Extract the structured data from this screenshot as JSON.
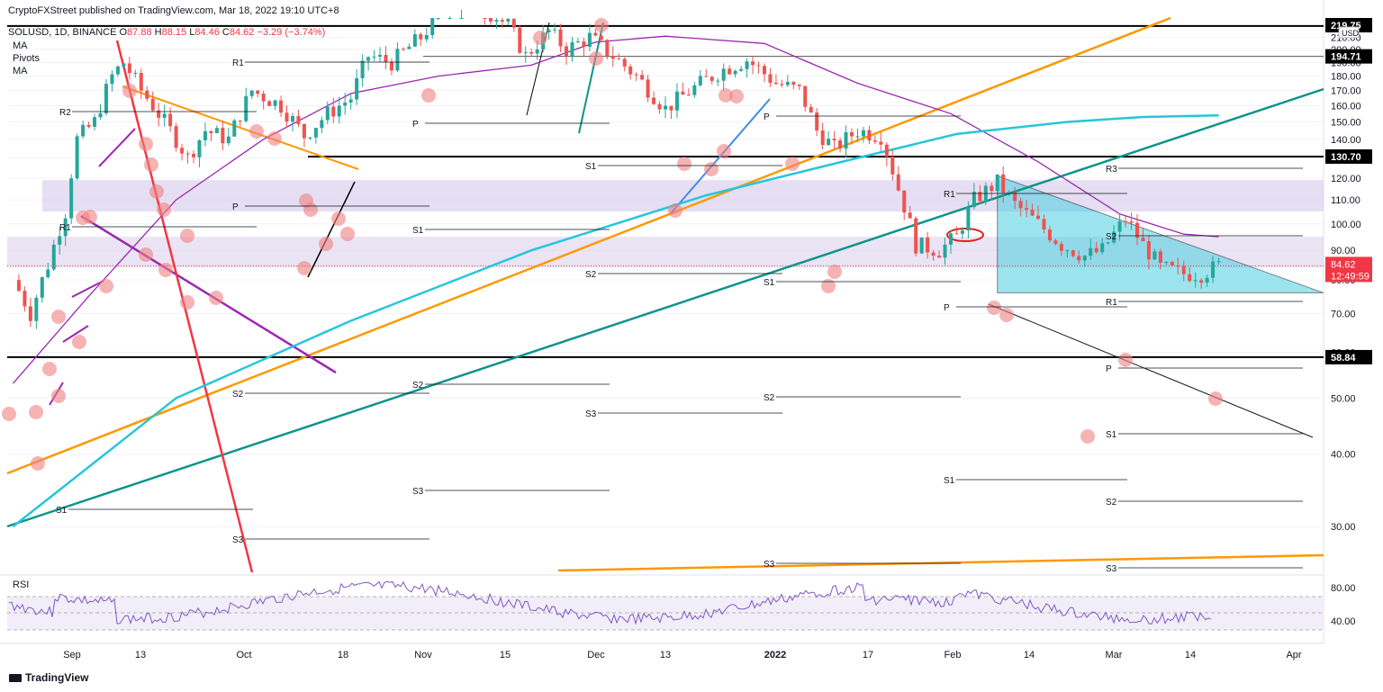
{
  "header": {
    "publisher": "CryptoFXStreet published on TradingView.com, Mar 18, 2022 19:10 UTC+8",
    "symbol": "SOLUSD, 1D, BINANCE",
    "ohlc": {
      "o_label": "O",
      "o": "87.88",
      "h_label": "H",
      "h": "88.15",
      "l_label": "L",
      "l": "84.46",
      "c_label": "C",
      "c": "84.62",
      "chg": "−3.29 (−3.74%)"
    },
    "indicators": [
      "MA",
      "Pivots",
      "MA"
    ],
    "rsi_label": "RSI"
  },
  "branding": {
    "name": "TradingView"
  },
  "colors": {
    "up": "#26a69a",
    "down": "#ef5350",
    "ma_purple": "#9c27b0",
    "ma_cyan": "#26c6da",
    "orange": "#ff9800",
    "teal": "#0f9488",
    "zone": "#d1c4e9",
    "triangle": "#4dd0e1"
  },
  "chart_data": {
    "type": "candlestick",
    "symbol": "SOLUSD",
    "timeframe": "1D",
    "currency": "USD",
    "ylim": [
      25,
      222
    ],
    "y_ticks": [
      30,
      40,
      50,
      60,
      70,
      80,
      90,
      100,
      110,
      120,
      130,
      140,
      150,
      160,
      170,
      180,
      190,
      200,
      210
    ],
    "x_labels": [
      "Sep",
      "13",
      "Oct",
      "18",
      "Nov",
      "15",
      "Dec",
      "13",
      "2022",
      "17",
      "Feb",
      "14",
      "Mar",
      "14",
      "Apr"
    ],
    "price_labels": {
      "top": "219.75",
      "ma_level": "194.71",
      "resistance": "130.70",
      "support": "58.84",
      "last": "84.62",
      "countdown": "12:49:59"
    },
    "unit_label": "USD",
    "pivot_labels": [
      "R2",
      "R1",
      "S1",
      "S2",
      "S3",
      "P",
      "R3"
    ],
    "horizontal_levels": [
      219.75,
      194.71,
      130.7,
      58.84
    ],
    "close_path": [
      {
        "d": "2021-08-23",
        "c": 80
      },
      {
        "d": "2021-08-26",
        "c": 70
      },
      {
        "d": "2021-08-29",
        "c": 85
      },
      {
        "d": "2021-09-01",
        "c": 105
      },
      {
        "d": "2021-09-03",
        "c": 140
      },
      {
        "d": "2021-09-06",
        "c": 150
      },
      {
        "d": "2021-09-09",
        "c": 180
      },
      {
        "d": "2021-09-11",
        "c": 190
      },
      {
        "d": "2021-09-14",
        "c": 170
      },
      {
        "d": "2021-09-18",
        "c": 150
      },
      {
        "d": "2021-09-22",
        "c": 130
      },
      {
        "d": "2021-09-25",
        "c": 145
      },
      {
        "d": "2021-09-29",
        "c": 140
      },
      {
        "d": "2021-10-03",
        "c": 170
      },
      {
        "d": "2021-10-08",
        "c": 160
      },
      {
        "d": "2021-10-12",
        "c": 142
      },
      {
        "d": "2021-10-16",
        "c": 155
      },
      {
        "d": "2021-10-20",
        "c": 165
      },
      {
        "d": "2021-10-23",
        "c": 195
      },
      {
        "d": "2021-10-27",
        "c": 190
      },
      {
        "d": "2021-11-01",
        "c": 210
      },
      {
        "d": "2021-11-06",
        "c": 240
      },
      {
        "d": "2021-11-12",
        "c": 235
      },
      {
        "d": "2021-11-16",
        "c": 220
      },
      {
        "d": "2021-11-19",
        "c": 195
      },
      {
        "d": "2021-11-23",
        "c": 215
      },
      {
        "d": "2021-11-26",
        "c": 200
      },
      {
        "d": "2021-11-30",
        "c": 210
      },
      {
        "d": "2021-12-04",
        "c": 195
      },
      {
        "d": "2021-12-08",
        "c": 180
      },
      {
        "d": "2021-12-13",
        "c": 158
      },
      {
        "d": "2021-12-18",
        "c": 172
      },
      {
        "d": "2021-12-23",
        "c": 185
      },
      {
        "d": "2021-12-27",
        "c": 192
      },
      {
        "d": "2022-01-01",
        "c": 175
      },
      {
        "d": "2022-01-05",
        "c": 170
      },
      {
        "d": "2022-01-08",
        "c": 145
      },
      {
        "d": "2022-01-11",
        "c": 135
      },
      {
        "d": "2022-01-15",
        "c": 145
      },
      {
        "d": "2022-01-19",
        "c": 142
      },
      {
        "d": "2022-01-22",
        "c": 115
      },
      {
        "d": "2022-01-25",
        "c": 92
      },
      {
        "d": "2022-01-29",
        "c": 90
      },
      {
        "d": "2022-02-01",
        "c": 95
      },
      {
        "d": "2022-02-04",
        "c": 110
      },
      {
        "d": "2022-02-08",
        "c": 118
      },
      {
        "d": "2022-02-11",
        "c": 108
      },
      {
        "d": "2022-02-15",
        "c": 100
      },
      {
        "d": "2022-02-19",
        "c": 92
      },
      {
        "d": "2022-02-23",
        "c": 88
      },
      {
        "d": "2022-02-26",
        "c": 90
      },
      {
        "d": "2022-03-02",
        "c": 102
      },
      {
        "d": "2022-03-05",
        "c": 92
      },
      {
        "d": "2022-03-08",
        "c": 84
      },
      {
        "d": "2022-03-12",
        "c": 82
      },
      {
        "d": "2022-03-15",
        "c": 82
      },
      {
        "d": "2022-03-18",
        "c": 84.62
      }
    ],
    "ma_purple": [
      {
        "d": "2021-08-23",
        "v": 53
      },
      {
        "d": "2021-09-05",
        "v": 75
      },
      {
        "d": "2021-09-20",
        "v": 110
      },
      {
        "d": "2021-10-05",
        "v": 140
      },
      {
        "d": "2021-10-20",
        "v": 168
      },
      {
        "d": "2021-11-04",
        "v": 180
      },
      {
        "d": "2021-11-20",
        "v": 188
      },
      {
        "d": "2021-12-01",
        "v": 206
      },
      {
        "d": "2021-12-13",
        "v": 211
      },
      {
        "d": "2021-12-30",
        "v": 205
      },
      {
        "d": "2022-01-15",
        "v": 175
      },
      {
        "d": "2022-01-31",
        "v": 155
      },
      {
        "d": "2022-02-15",
        "v": 128
      },
      {
        "d": "2022-03-01",
        "v": 104
      },
      {
        "d": "2022-03-12",
        "v": 96
      },
      {
        "d": "2022-03-18",
        "v": 95
      }
    ],
    "ma_cyan": [
      {
        "d": "2021-08-23",
        "v": 30
      },
      {
        "d": "2021-09-20",
        "v": 50
      },
      {
        "d": "2021-10-20",
        "v": 68
      },
      {
        "d": "2021-11-20",
        "v": 90
      },
      {
        "d": "2021-12-20",
        "v": 112
      },
      {
        "d": "2022-01-15",
        "v": 130
      },
      {
        "d": "2022-02-01",
        "v": 143
      },
      {
        "d": "2022-02-20",
        "v": 150
      },
      {
        "d": "2022-03-05",
        "v": 153
      },
      {
        "d": "2022-03-18",
        "v": 154
      }
    ]
  }
}
